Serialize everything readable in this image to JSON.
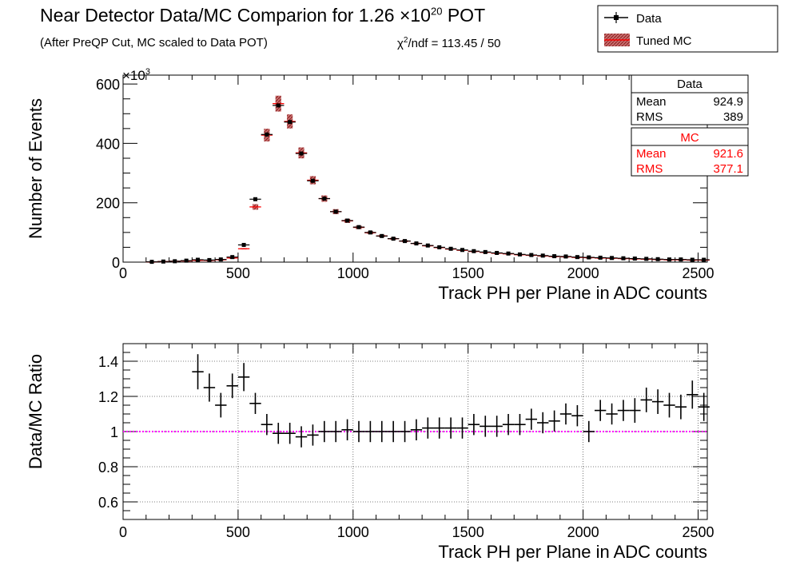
{
  "header": {
    "title_text": "Near Detector Data/MC Comparion for 1.26 ×10",
    "title_exponent": "20",
    "title_suffix": " POT",
    "subtitle": "(After PreQP Cut, MC scaled to Data POT)",
    "chi2_prefix": "χ",
    "chi2_exponent": "2",
    "chi2_rest": "/ndf = 113.45 / 50"
  },
  "legend": {
    "position": "top-right",
    "entries": [
      {
        "label": "Data",
        "style": "black-marker-with-error"
      },
      {
        "label": "Tuned MC",
        "style": "red-hatched-box"
      }
    ]
  },
  "stats": {
    "data": {
      "title": "Data",
      "mean_label": "Mean",
      "mean": "924.9",
      "rms_label": "RMS",
      "rms": "389"
    },
    "mc": {
      "title": "MC",
      "mean_label": "Mean",
      "mean": "921.6",
      "rms_label": "RMS",
      "rms": "377.1"
    }
  },
  "colors": {
    "data": "#000000",
    "mc": "#ff0000",
    "mc_band": "#b03030",
    "unity_line": "#ff00ff"
  },
  "chart_data": [
    {
      "type": "bar",
      "xlabel": "Track PH per Plane in ADC counts",
      "ylabel": "Number of Events",
      "y_multiplier_label": "×10",
      "y_multiplier_exp": "3",
      "xlim": [
        0,
        2540
      ],
      "ylim": [
        0,
        630
      ],
      "xticks": [
        0,
        500,
        1000,
        1500,
        2000,
        2500
      ],
      "yticks": [
        0,
        200,
        400,
        600
      ],
      "grid": false,
      "bin_width": 50,
      "x": [
        125,
        175,
        225,
        275,
        325,
        375,
        425,
        475,
        525,
        575,
        625,
        675,
        725,
        775,
        825,
        875,
        925,
        975,
        1025,
        1075,
        1125,
        1175,
        1225,
        1275,
        1325,
        1375,
        1425,
        1475,
        1525,
        1575,
        1625,
        1675,
        1725,
        1775,
        1825,
        1875,
        1925,
        1975,
        2025,
        2075,
        2125,
        2175,
        2225,
        2275,
        2325,
        2375,
        2425,
        2475,
        2525
      ],
      "series": [
        {
          "name": "Data",
          "values": [
            1,
            2,
            3,
            5,
            8,
            7,
            9,
            17,
            58,
            212,
            430,
            528,
            472,
            366,
            274,
            214,
            170,
            140,
            118,
            100,
            88,
            79,
            71,
            63,
            56,
            50,
            45,
            41,
            37,
            34,
            31,
            29,
            26,
            24,
            22,
            20,
            19,
            17,
            16,
            15,
            14,
            13,
            12,
            11,
            10,
            9,
            9,
            8,
            8
          ]
        },
        {
          "name": "Tuned MC",
          "values": [
            1,
            2,
            3,
            4,
            6,
            6,
            8,
            14,
            45,
            186,
            428,
            534,
            474,
            368,
            276,
            214,
            170,
            139,
            117,
            99,
            88,
            79,
            71,
            63,
            55,
            49,
            44,
            40,
            36,
            33,
            30,
            28,
            25,
            23,
            21,
            19,
            18,
            16,
            15,
            14,
            13,
            12,
            11,
            10,
            9,
            8,
            8,
            7,
            7
          ]
        }
      ]
    },
    {
      "type": "scatter",
      "xlabel": "Track PH per Plane in ADC counts",
      "ylabel": "Data/MC Ratio",
      "xlim": [
        0,
        2540
      ],
      "ylim": [
        0.5,
        1.5
      ],
      "xticks": [
        0,
        500,
        1000,
        1500,
        2000,
        2500
      ],
      "yticks": [
        0.6,
        0.8,
        1,
        1.2,
        1.4
      ],
      "ytick_labels": [
        "0.6",
        "0.8",
        "1",
        "1.2",
        "1.4"
      ],
      "grid": true,
      "reference_line": 1,
      "x": [
        325,
        375,
        425,
        475,
        525,
        575,
        625,
        675,
        725,
        775,
        825,
        875,
        925,
        975,
        1025,
        1075,
        1125,
        1175,
        1225,
        1275,
        1325,
        1375,
        1425,
        1475,
        1525,
        1575,
        1625,
        1675,
        1725,
        1775,
        1825,
        1875,
        1925,
        1975,
        2025,
        2075,
        2125,
        2175,
        2225,
        2275,
        2325,
        2375,
        2425,
        2475,
        2525
      ],
      "values": [
        1.34,
        1.25,
        1.15,
        1.26,
        1.31,
        1.16,
        1.04,
        0.99,
        0.99,
        0.97,
        0.98,
        1.0,
        1.0,
        1.01,
        1.0,
        1.0,
        1.0,
        1.0,
        1.0,
        1.01,
        1.02,
        1.02,
        1.02,
        1.02,
        1.04,
        1.03,
        1.03,
        1.04,
        1.04,
        1.07,
        1.05,
        1.06,
        1.1,
        1.09,
        1.0,
        1.12,
        1.1,
        1.12,
        1.12,
        1.18,
        1.17,
        1.15,
        1.14,
        1.21,
        1.14
      ],
      "errors": [
        0.1,
        0.08,
        0.07,
        0.07,
        0.08,
        0.06,
        0.06,
        0.06,
        0.06,
        0.06,
        0.06,
        0.06,
        0.06,
        0.06,
        0.06,
        0.06,
        0.06,
        0.06,
        0.06,
        0.06,
        0.06,
        0.06,
        0.06,
        0.06,
        0.06,
        0.06,
        0.06,
        0.06,
        0.06,
        0.06,
        0.06,
        0.06,
        0.06,
        0.06,
        0.06,
        0.06,
        0.06,
        0.06,
        0.07,
        0.07,
        0.07,
        0.07,
        0.07,
        0.08,
        0.08
      ]
    }
  ]
}
